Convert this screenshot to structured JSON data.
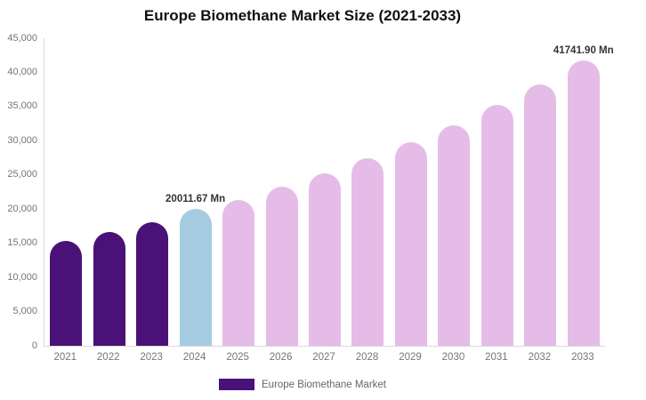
{
  "chart_data": {
    "type": "bar",
    "title": "Europe Biomethane Market Size (2021-2033)",
    "categories": [
      "2021",
      "2022",
      "2023",
      "2024",
      "2025",
      "2026",
      "2027",
      "2028",
      "2029",
      "2030",
      "2031",
      "2032",
      "2033"
    ],
    "values": [
      15300,
      16700,
      18100,
      20011.67,
      21350,
      23250,
      25200,
      27400,
      29750,
      32300,
      35250,
      38250,
      41741.9
    ],
    "bar_colors": [
      "#4A1178",
      "#4A1178",
      "#4A1178",
      "#A5CBE0",
      "#E5BCE8",
      "#E5BCE8",
      "#E5BCE8",
      "#E5BCE8",
      "#E5BCE8",
      "#E5BCE8",
      "#E5BCE8",
      "#E5BCE8",
      "#E5BCE8"
    ],
    "data_labels": [
      {
        "index": 3,
        "text": "20011.67 Mn"
      },
      {
        "index": 12,
        "text": "41741.90 Mn"
      }
    ],
    "y_ticks": [
      {
        "v": 45000,
        "label": "45,000"
      },
      {
        "v": 40000,
        "label": "40,000"
      },
      {
        "v": 35000,
        "label": "35,000"
      },
      {
        "v": 30000,
        "label": "30,000"
      },
      {
        "v": 25000,
        "label": "25,000"
      },
      {
        "v": 20000,
        "label": "20,000"
      },
      {
        "v": 15000,
        "label": "15,000"
      },
      {
        "v": 10000,
        "label": "10,000"
      },
      {
        "v": 5000,
        "label": "5,000"
      },
      {
        "v": 0,
        "label": "0"
      }
    ],
    "ylim": [
      0,
      45000
    ],
    "xlabel": "",
    "ylabel": "",
    "grid": false,
    "legend": [
      {
        "label": "Europe Biomethane Market",
        "color": "#4A1178"
      }
    ],
    "legend_position": "bottom-center",
    "colors": {
      "series_main": "#4A1178",
      "series_highlight": "#A5CBE0",
      "series_forecast": "#E5BCE8",
      "axis_line": "#d9d9d9",
      "tick_text": "#757575",
      "data_label_text": "#333333",
      "title_text": "#111111"
    }
  }
}
